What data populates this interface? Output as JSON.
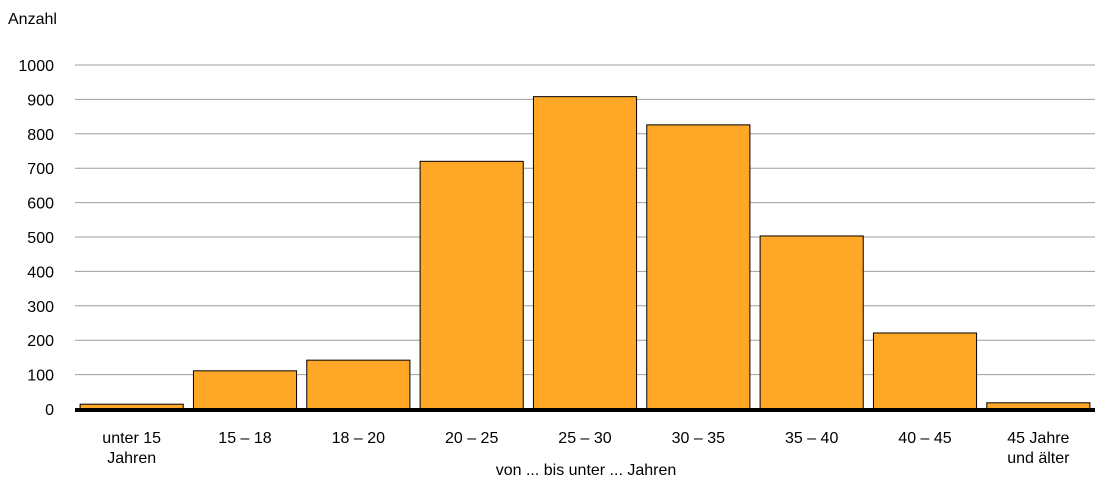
{
  "chart_data": {
    "type": "bar",
    "ylabel": "Anzahl",
    "xlabel": "von ... bis unter ... Jahren",
    "categories": [
      [
        "unter 15",
        "Jahren"
      ],
      [
        "15 – 18"
      ],
      [
        "18 – 20"
      ],
      [
        "20 – 25"
      ],
      [
        "25 – 30"
      ],
      [
        "30 – 35"
      ],
      [
        "35 – 40"
      ],
      [
        "40 – 45"
      ],
      [
        "45 Jahre",
        "und älter"
      ]
    ],
    "values": [
      14,
      111,
      142,
      720,
      908,
      826,
      503,
      221,
      18
    ],
    "ylim": [
      0,
      1000
    ],
    "yticks": [
      0,
      100,
      200,
      300,
      400,
      500,
      600,
      700,
      800,
      900,
      1000
    ],
    "grid": true,
    "legend": "none",
    "colors": {
      "bar_fill": "#FFA726",
      "bar_stroke": "#000000",
      "grid": "#9E9E9E",
      "baseline": "#000000"
    }
  }
}
